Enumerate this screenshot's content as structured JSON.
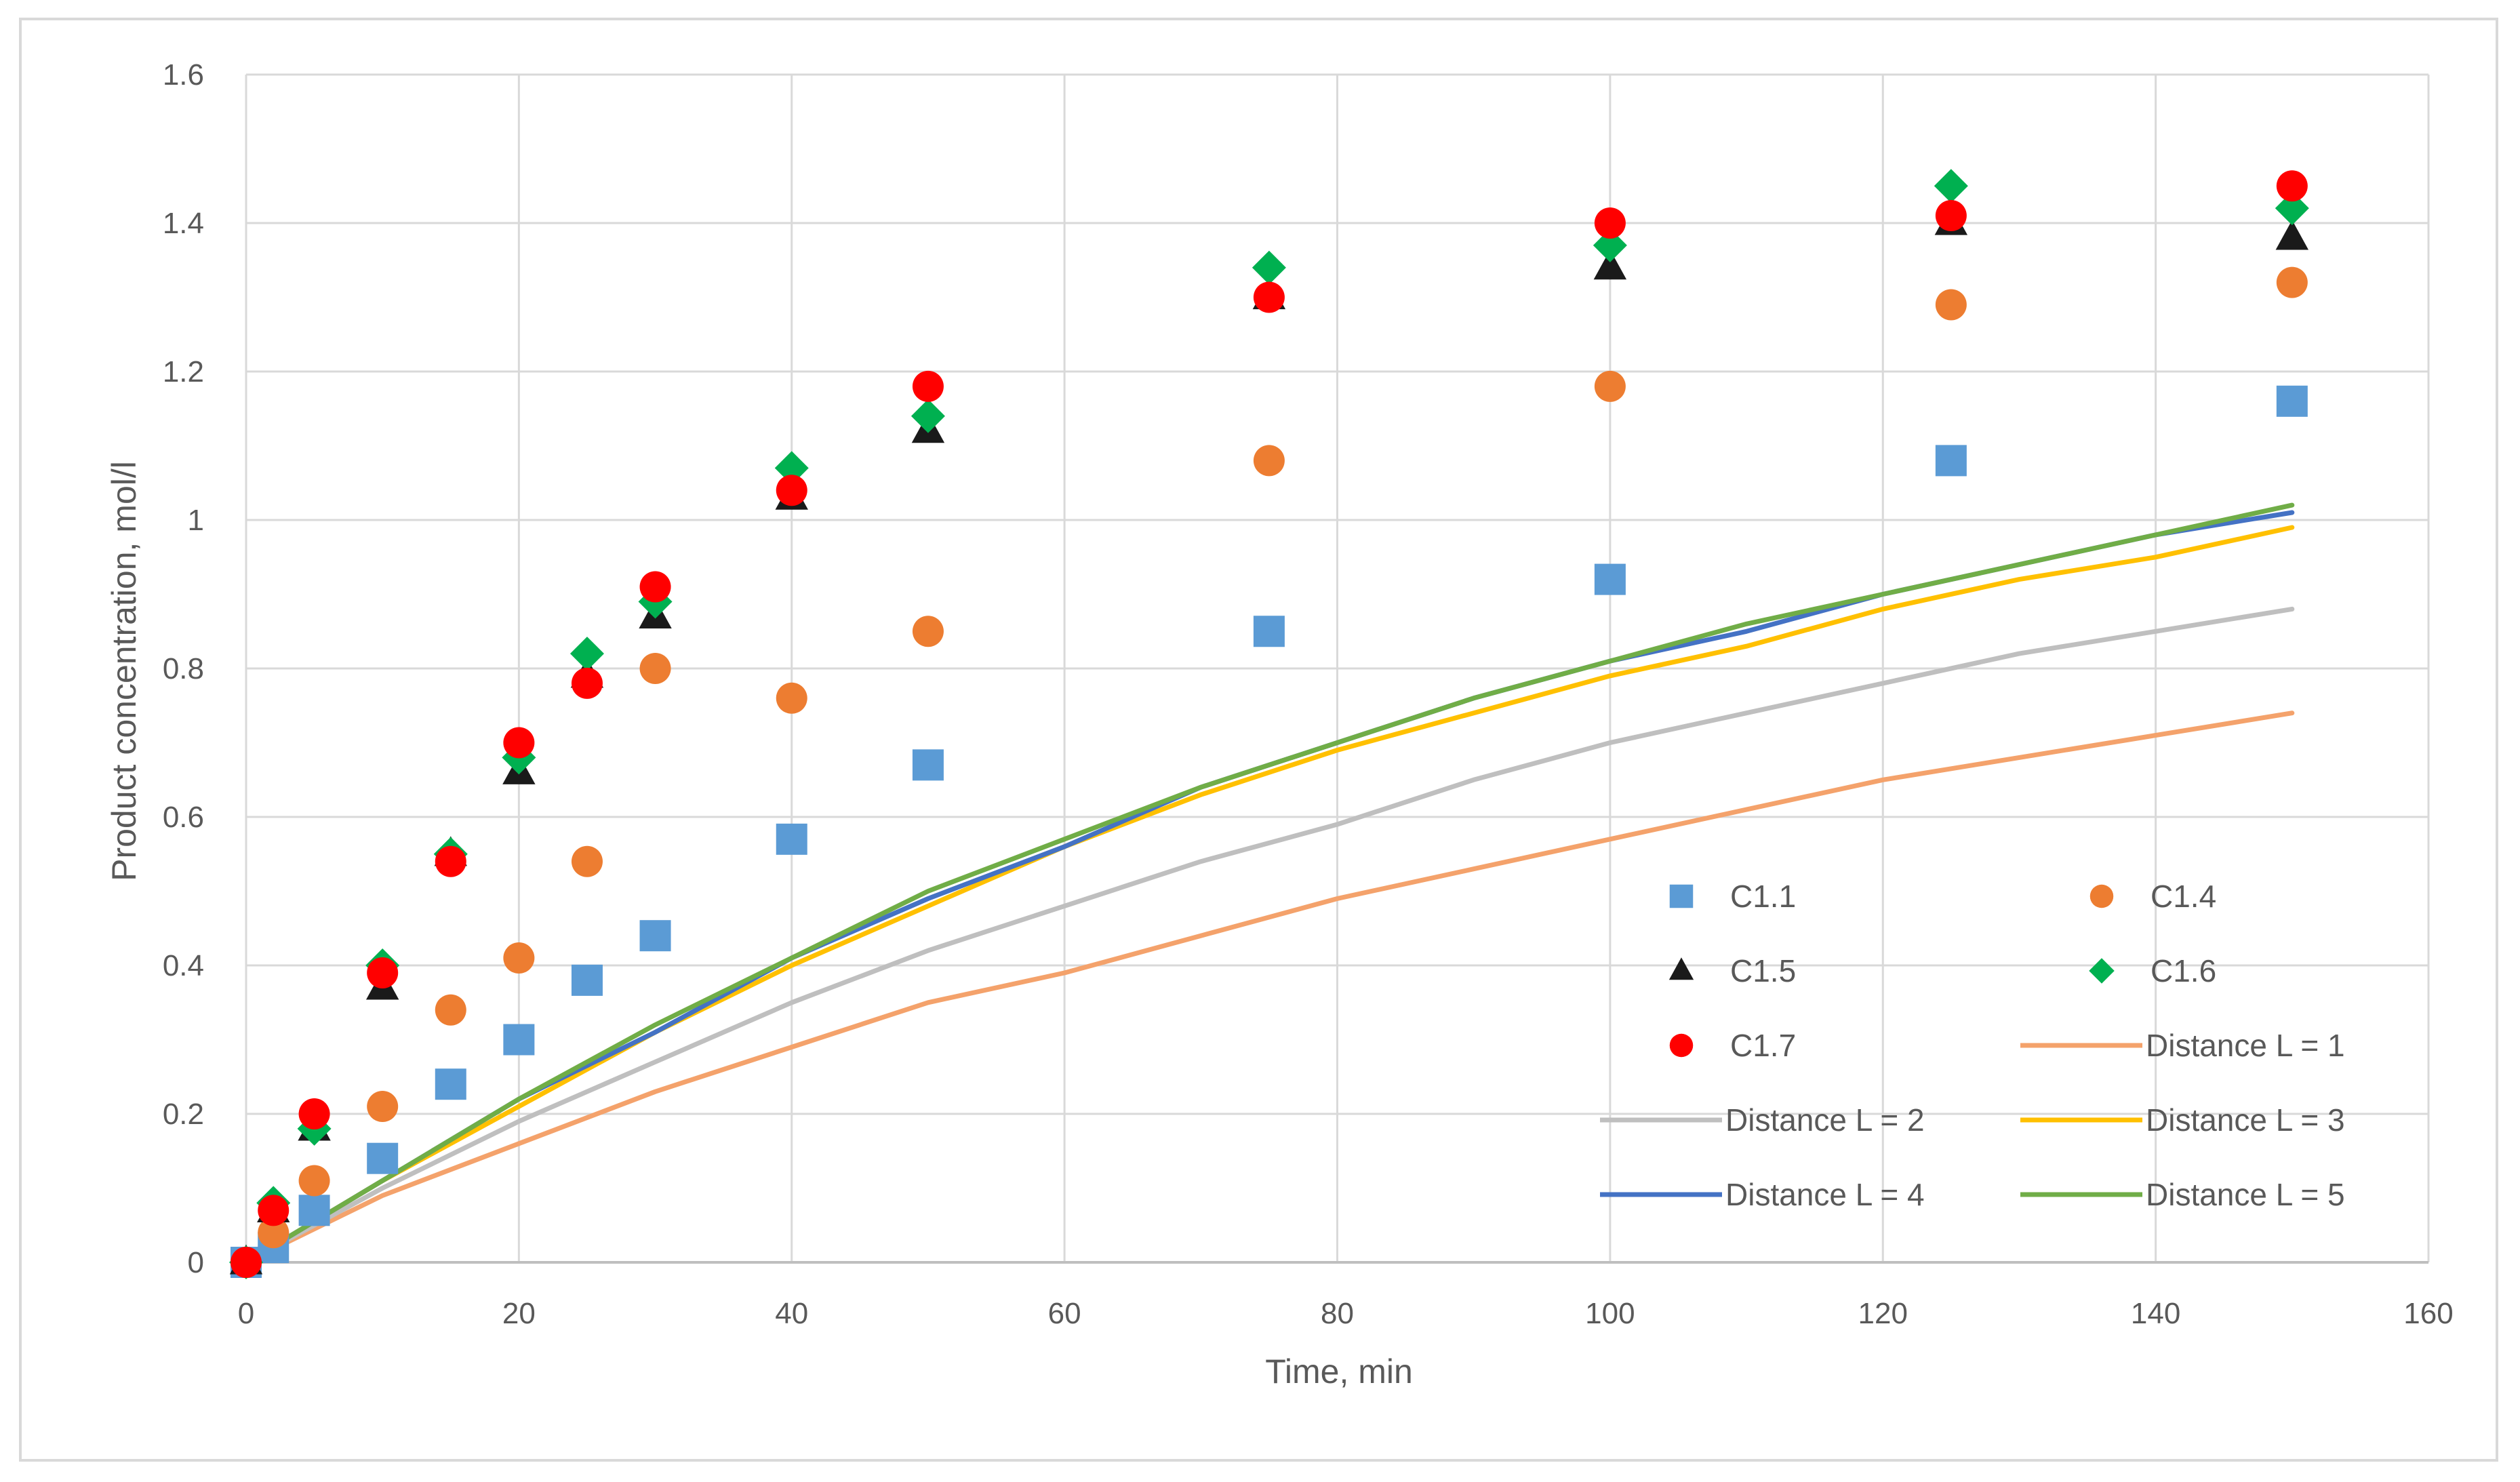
{
  "chart_data": {
    "type": "scatter",
    "title": "",
    "xlabel": "Time, min",
    "ylabel": "Product concentration, mol/l",
    "xlim": [
      0,
      160
    ],
    "ylim": [
      0,
      1.6
    ],
    "x_ticks": [
      "0",
      "20",
      "40",
      "60",
      "80",
      "100",
      "120",
      "140",
      "160"
    ],
    "y_ticks": [
      "0",
      "0.2",
      "0.4",
      "0.6",
      "0.8",
      "1",
      "1.2",
      "1.4",
      "1.6"
    ],
    "grid": true,
    "legend_position": "bottom-right",
    "marker_series": [
      {
        "name": "C1.1",
        "marker": "square",
        "color": "#5b9bd5",
        "x": [
          0,
          2,
          5,
          10,
          15,
          20,
          25,
          30,
          40,
          50,
          75,
          100,
          125,
          150
        ],
        "y": [
          0,
          0.02,
          0.07,
          0.14,
          0.24,
          0.3,
          0.38,
          0.44,
          0.57,
          0.67,
          0.85,
          0.92,
          1.08,
          1.16
        ]
      },
      {
        "name": "C1.4",
        "marker": "circle",
        "color": "#ed7d31",
        "x": [
          0,
          2,
          5,
          10,
          15,
          20,
          25,
          30,
          40,
          50,
          75,
          100,
          125,
          150
        ],
        "y": [
          0,
          0.04,
          0.11,
          0.21,
          0.34,
          0.41,
          0.54,
          0.8,
          0.76,
          0.85,
          1.08,
          1.18,
          1.29,
          1.32
        ]
      },
      {
        "name": "C1.5",
        "marker": "triangle",
        "color": "#1a1a1a",
        "x": [
          0,
          2,
          5,
          10,
          15,
          20,
          25,
          30,
          40,
          50,
          75,
          100,
          125,
          150
        ],
        "y": [
          0,
          0.07,
          0.18,
          0.37,
          0.55,
          0.66,
          0.79,
          0.87,
          1.03,
          1.12,
          1.3,
          1.34,
          1.4,
          1.38
        ]
      },
      {
        "name": "C1.6",
        "marker": "diamond",
        "color": "#00b050",
        "x": [
          0,
          2,
          5,
          10,
          15,
          20,
          25,
          30,
          40,
          50,
          75,
          100,
          125,
          150
        ],
        "y": [
          0,
          0.08,
          0.18,
          0.4,
          0.55,
          0.68,
          0.82,
          0.89,
          1.07,
          1.14,
          1.34,
          1.37,
          1.45,
          1.42
        ]
      },
      {
        "name": "C1.7",
        "marker": "circle",
        "color": "#ff0000",
        "x": [
          0,
          2,
          5,
          10,
          15,
          20,
          25,
          30,
          40,
          50,
          75,
          100,
          125,
          150
        ],
        "y": [
          0,
          0.07,
          0.2,
          0.39,
          0.54,
          0.7,
          0.78,
          0.91,
          1.04,
          1.18,
          1.3,
          1.4,
          1.41,
          1.45
        ]
      }
    ],
    "line_series": [
      {
        "name": "Distance L = 1",
        "color": "#f4a26b",
        "x": [
          0,
          10,
          20,
          30,
          40,
          50,
          60,
          70,
          80,
          90,
          100,
          110,
          120,
          130,
          140,
          150
        ],
        "y": [
          0,
          0.09,
          0.16,
          0.23,
          0.29,
          0.35,
          0.39,
          0.44,
          0.49,
          0.53,
          0.57,
          0.61,
          0.65,
          0.68,
          0.71,
          0.74
        ]
      },
      {
        "name": "Distance L = 2",
        "color": "#bfbfbf",
        "x": [
          0,
          10,
          20,
          30,
          40,
          50,
          60,
          70,
          80,
          90,
          100,
          110,
          120,
          130,
          140,
          150
        ],
        "y": [
          0,
          0.1,
          0.19,
          0.27,
          0.35,
          0.42,
          0.48,
          0.54,
          0.59,
          0.65,
          0.7,
          0.74,
          0.78,
          0.82,
          0.85,
          0.88
        ]
      },
      {
        "name": "Distance L = 3",
        "color": "#ffc000",
        "x": [
          0,
          10,
          20,
          30,
          40,
          50,
          60,
          70,
          80,
          90,
          100,
          110,
          120,
          130,
          140,
          150
        ],
        "y": [
          0,
          0.11,
          0.21,
          0.31,
          0.4,
          0.48,
          0.56,
          0.63,
          0.69,
          0.74,
          0.79,
          0.83,
          0.88,
          0.92,
          0.95,
          0.99
        ]
      },
      {
        "name": "Distance L = 4",
        "color": "#4472c4",
        "x": [
          0,
          10,
          20,
          30,
          40,
          50,
          60,
          70,
          80,
          90,
          100,
          110,
          120,
          130,
          140,
          150
        ],
        "y": [
          0,
          0.11,
          0.22,
          0.31,
          0.41,
          0.49,
          0.56,
          0.64,
          0.7,
          0.76,
          0.81,
          0.85,
          0.9,
          0.94,
          0.98,
          1.01
        ]
      },
      {
        "name": "Distance L = 5",
        "color": "#70ad47",
        "x": [
          0,
          10,
          20,
          30,
          40,
          50,
          60,
          70,
          80,
          90,
          100,
          110,
          120,
          130,
          140,
          150
        ],
        "y": [
          0,
          0.11,
          0.22,
          0.32,
          0.41,
          0.5,
          0.57,
          0.64,
          0.7,
          0.76,
          0.81,
          0.86,
          0.9,
          0.94,
          0.98,
          1.02
        ]
      }
    ]
  }
}
